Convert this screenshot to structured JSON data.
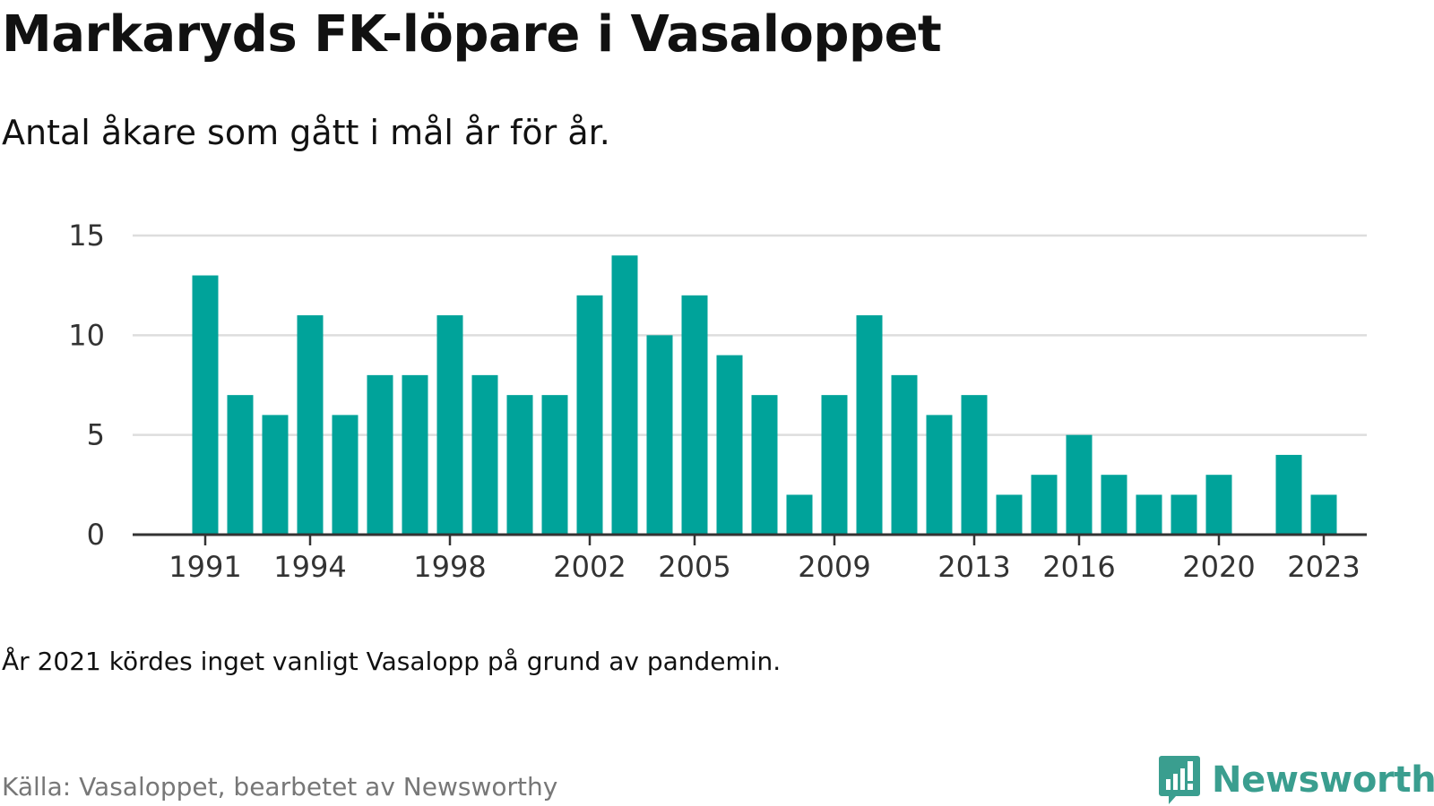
{
  "title": "Markaryds FK-löpare i Vasaloppet",
  "subtitle": "Antal åkare som gått i mål år för år.",
  "note": "År 2021 kördes inget vanligt Vasalopp på grund av pandemin.",
  "source": "Källa: Vasaloppet, bearbetet av Newsworthy",
  "brand": {
    "name": "Newsworthy",
    "icon": "newsworthy-logo-icon",
    "color": "#3a9e8f"
  },
  "colors": {
    "bar": "#00a39a",
    "grid": "#dddddd",
    "axis": "#333333"
  },
  "chart_data": {
    "type": "bar",
    "x": [
      1991,
      1992,
      1993,
      1994,
      1995,
      1996,
      1997,
      1998,
      1999,
      2000,
      2001,
      2002,
      2003,
      2004,
      2005,
      2006,
      2007,
      2008,
      2009,
      2010,
      2011,
      2012,
      2013,
      2014,
      2015,
      2016,
      2017,
      2018,
      2019,
      2020,
      2021,
      2022,
      2023
    ],
    "values": [
      13,
      7,
      6,
      11,
      6,
      8,
      8,
      11,
      8,
      7,
      7,
      12,
      14,
      10,
      12,
      9,
      7,
      2,
      7,
      11,
      8,
      6,
      7,
      2,
      3,
      5,
      3,
      2,
      2,
      3,
      0,
      4,
      2
    ],
    "x_ticks": [
      "1991",
      "1994",
      "1998",
      "2002",
      "2005",
      "2009",
      "2013",
      "2016",
      "2020",
      "2023"
    ],
    "y_ticks": [
      "0",
      "5",
      "10",
      "15"
    ],
    "ylim": [
      0,
      15
    ],
    "grid": true,
    "xlabel": "",
    "ylabel": ""
  }
}
